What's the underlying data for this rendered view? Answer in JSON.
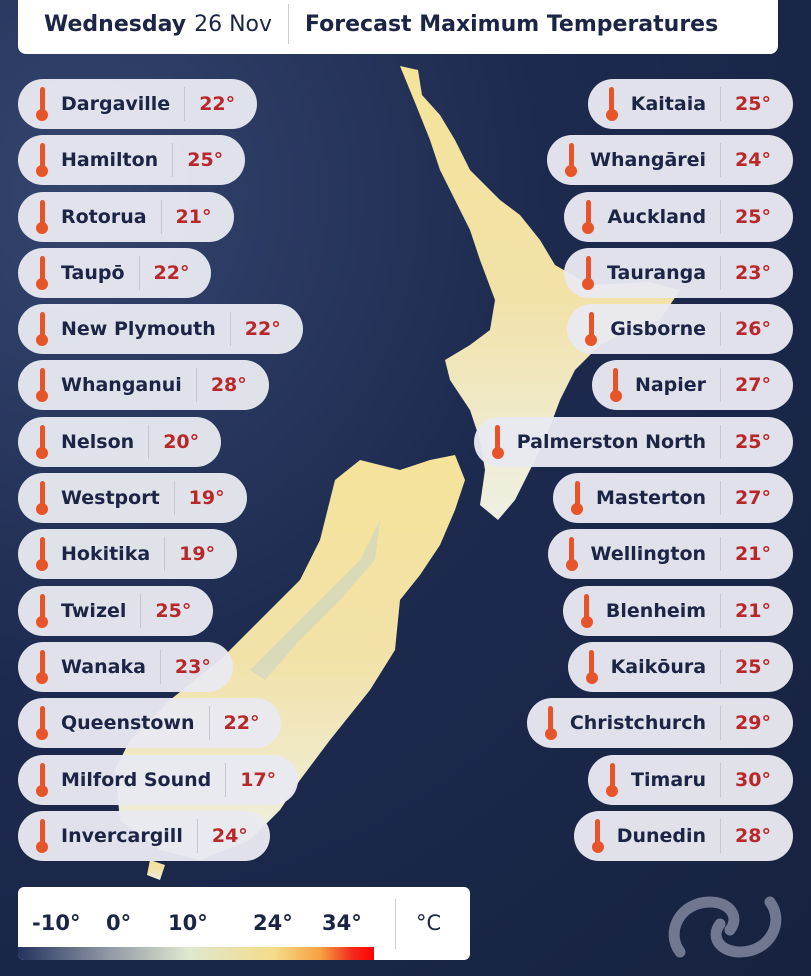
{
  "header": {
    "day": "Wednesday",
    "date": "26 Nov",
    "title": "Forecast Maximum Temperatures"
  },
  "left_locations": [
    {
      "name": "Dargaville",
      "temp": "22°"
    },
    {
      "name": "Hamilton",
      "temp": "25°"
    },
    {
      "name": "Rotorua",
      "temp": "21°"
    },
    {
      "name": "Taupō",
      "temp": "22°"
    },
    {
      "name": "New Plymouth",
      "temp": "22°"
    },
    {
      "name": "Whanganui",
      "temp": "28°"
    },
    {
      "name": "Nelson",
      "temp": "20°"
    },
    {
      "name": "Westport",
      "temp": "19°"
    },
    {
      "name": "Hokitika",
      "temp": "19°"
    },
    {
      "name": "Twizel",
      "temp": "25°"
    },
    {
      "name": "Wanaka",
      "temp": "23°"
    },
    {
      "name": "Queenstown",
      "temp": "22°"
    },
    {
      "name": "Milford Sound",
      "temp": "17°"
    },
    {
      "name": "Invercargill",
      "temp": "24°"
    }
  ],
  "right_locations": [
    {
      "name": "Kaitaia",
      "temp": "25°"
    },
    {
      "name": "Whangārei",
      "temp": "24°"
    },
    {
      "name": "Auckland",
      "temp": "25°"
    },
    {
      "name": "Tauranga",
      "temp": "23°"
    },
    {
      "name": "Gisborne",
      "temp": "26°"
    },
    {
      "name": "Napier",
      "temp": "27°"
    },
    {
      "name": "Palmerston North",
      "temp": "25°"
    },
    {
      "name": "Masterton",
      "temp": "27°"
    },
    {
      "name": "Wellington",
      "temp": "21°"
    },
    {
      "name": "Blenheim",
      "temp": "21°"
    },
    {
      "name": "Kaikōura",
      "temp": "25°"
    },
    {
      "name": "Christchurch",
      "temp": "29°"
    },
    {
      "name": "Timaru",
      "temp": "30°"
    },
    {
      "name": "Dunedin",
      "temp": "28°"
    }
  ],
  "legend": {
    "labels": [
      "-10°",
      "0°",
      "10°",
      "24°",
      "34°"
    ],
    "unit": "°C"
  },
  "icons": {
    "location": "thermometer-icon",
    "logo": "metservice-logo"
  },
  "colors": {
    "background": "#1a2447",
    "temp_text": "#b8282a",
    "thermometer": "#e8542a",
    "land": "#f4e3a4"
  }
}
